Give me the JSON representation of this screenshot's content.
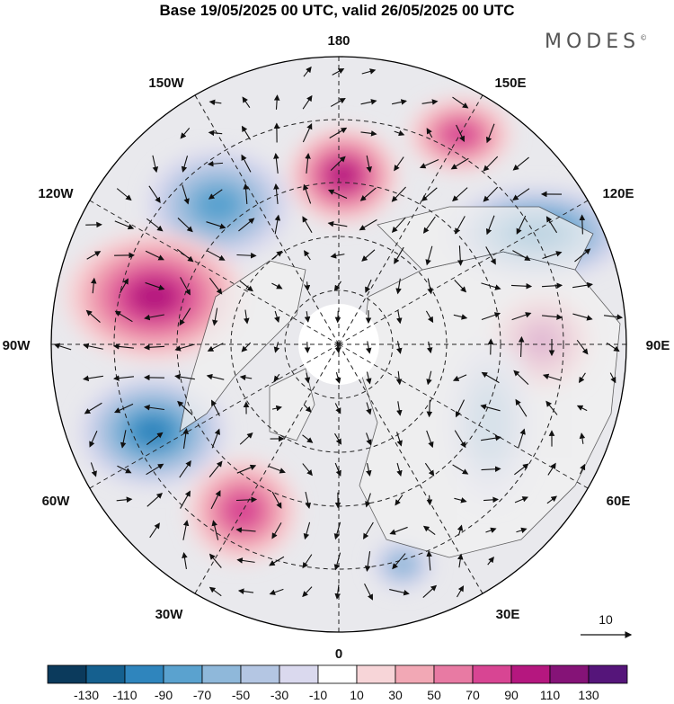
{
  "title": "Base 19/05/2025 00 UTC, valid 26/05/2025 00 UTC",
  "brand": "MODES",
  "brand_mark": "©",
  "longitude_labels": [
    "180",
    "150E",
    "120E",
    "90E",
    "60E",
    "30E",
    "0",
    "30W",
    "60W",
    "90W",
    "120W",
    "150W"
  ],
  "vector_scale_label": "10",
  "colorbar": {
    "tick_labels": [
      "-130",
      "-110",
      "-90",
      "-70",
      "-50",
      "-30",
      "-10",
      "10",
      "30",
      "50",
      "70",
      "90",
      "110",
      "130"
    ],
    "colors": [
      "#0b3a5c",
      "#15608f",
      "#2f85bd",
      "#5aa2cf",
      "#8fb8da",
      "#b4c6e3",
      "#dad9ee",
      "#ffffff",
      "#f7d5d8",
      "#f2a8b5",
      "#e87aa3",
      "#d84593",
      "#b5177f",
      "#851377",
      "#55157a"
    ]
  },
  "anomaly_centers": [
    {
      "sign": "negative",
      "level": -70
    },
    {
      "sign": "positive",
      "level": 90
    },
    {
      "sign": "positive",
      "level": 70
    },
    {
      "sign": "negative",
      "level": -90
    },
    {
      "sign": "positive",
      "level": 90
    },
    {
      "sign": "positive",
      "level": 90
    },
    {
      "sign": "negative",
      "level": -90
    },
    {
      "sign": "positive",
      "level": 70
    },
    {
      "sign": "negative",
      "level": -50
    },
    {
      "sign": "negative",
      "level": -50
    }
  ]
}
